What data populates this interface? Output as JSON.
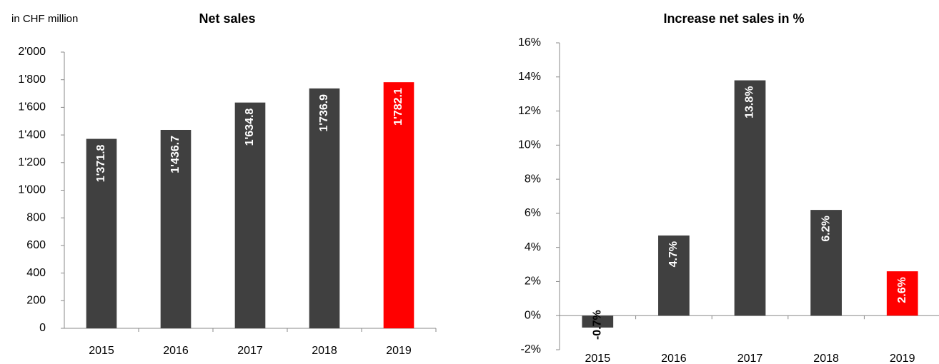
{
  "chart_data": [
    {
      "type": "bar",
      "title": "Net sales",
      "unit_label": "in CHF million",
      "categories": [
        "2015",
        "2016",
        "2017",
        "2018",
        "2019"
      ],
      "values": [
        1371.8,
        1436.7,
        1634.8,
        1736.9,
        1782.1
      ],
      "value_labels": [
        "1'371.8",
        "1'436.7",
        "1'634.8",
        "1'736.9",
        "1'782.1"
      ],
      "colors": [
        "#404040",
        "#404040",
        "#404040",
        "#404040",
        "#ff0000"
      ],
      "ylim": [
        0,
        2000
      ],
      "yticks": [
        0,
        200,
        400,
        600,
        800,
        {
          "value": 1000,
          "label": "1'000"
        },
        {
          "value": 1200,
          "label": "1'200"
        },
        {
          "value": 1400,
          "label": "1'400"
        },
        {
          "value": 1600,
          "label": "1'600"
        },
        {
          "value": 1800,
          "label": "1'800"
        },
        {
          "value": 2000,
          "label": "2'000"
        }
      ]
    },
    {
      "type": "bar",
      "title": "Increase net sales in %",
      "categories": [
        "2015",
        "2016",
        "2017",
        "2018",
        "2019"
      ],
      "values": [
        -0.7,
        4.7,
        13.8,
        6.2,
        2.6
      ],
      "value_labels": [
        "-0.7%",
        "4.7%",
        "13.8%",
        "6.2%",
        "2.6%"
      ],
      "colors": [
        "#404040",
        "#404040",
        "#404040",
        "#404040",
        "#ff0000"
      ],
      "ylim": [
        -2,
        16
      ],
      "yticks": [
        {
          "value": -2,
          "label": "-2%"
        },
        {
          "value": 0,
          "label": "0%"
        },
        {
          "value": 2,
          "label": "2%"
        },
        {
          "value": 4,
          "label": "4%"
        },
        {
          "value": 6,
          "label": "6%"
        },
        {
          "value": 8,
          "label": "8%"
        },
        {
          "value": 10,
          "label": "10%"
        },
        {
          "value": 12,
          "label": "12%"
        },
        {
          "value": 14,
          "label": "14%"
        },
        {
          "value": 16,
          "label": "16%"
        }
      ]
    }
  ]
}
